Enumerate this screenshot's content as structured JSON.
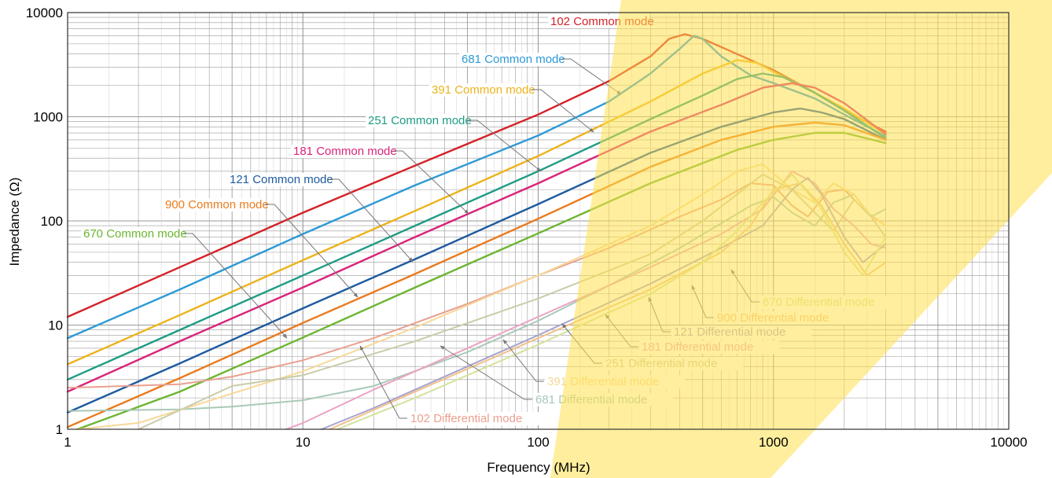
{
  "chart_data": {
    "type": "line",
    "title": "",
    "xlabel": "Frequency (MHz)",
    "ylabel": "Impedance (Ω)",
    "xscale": "log",
    "yscale": "log",
    "xlim": [
      1,
      10000
    ],
    "ylim": [
      1,
      10000
    ],
    "x_ticks": [
      1,
      10,
      100,
      1000,
      10000
    ],
    "x_tick_labels": [
      "1",
      "10",
      "100",
      "1000",
      "10000"
    ],
    "y_ticks": [
      1,
      10,
      100,
      1000,
      10000
    ],
    "y_tick_labels": [
      "1",
      "10",
      "100",
      "1000",
      "10000"
    ],
    "grid": true,
    "legend": "inline annotations with leader arrows",
    "watermark_color": "#FFE04D",
    "series": [
      {
        "name": "102 Common mode",
        "color": "#D42127",
        "x": [
          1,
          3,
          10,
          30,
          100,
          200,
          300,
          360,
          420,
          500,
          700,
          1000,
          1500,
          2000,
          3000
        ],
        "y": [
          12,
          36,
          120,
          340,
          1050,
          2200,
          3800,
          5600,
          6200,
          5600,
          4000,
          2800,
          1700,
          1150,
          720
        ]
      },
      {
        "name": "681 Common mode",
        "color": "#2C9AD6",
        "x": [
          1,
          3,
          10,
          30,
          100,
          200,
          300,
          400,
          460,
          500,
          600,
          800,
          1000,
          1500,
          2000,
          3000
        ],
        "y": [
          7.5,
          22,
          75,
          220,
          660,
          1400,
          2600,
          4500,
          6000,
          5600,
          3800,
          2500,
          2100,
          1500,
          1050,
          650
        ]
      },
      {
        "name": "391 Common mode",
        "color": "#ECB31C",
        "x": [
          1,
          3,
          10,
          30,
          100,
          300,
          500,
          700,
          850,
          1000,
          1500,
          2000,
          3000
        ],
        "y": [
          4.2,
          12.5,
          42,
          125,
          420,
          1400,
          2600,
          3500,
          3300,
          2700,
          1700,
          1200,
          680
        ]
      },
      {
        "name": "251 Common mode",
        "color": "#1E9C84",
        "x": [
          1,
          3,
          10,
          30,
          100,
          300,
          500,
          700,
          900,
          1100,
          1500,
          2000,
          3000
        ],
        "y": [
          3,
          9,
          30,
          90,
          300,
          950,
          1600,
          2300,
          2600,
          2400,
          1700,
          1150,
          620
        ]
      },
      {
        "name": "181 Common mode",
        "color": "#D9237A",
        "x": [
          1,
          3,
          10,
          30,
          100,
          300,
          600,
          900,
          1200,
          1500,
          2000,
          3000
        ],
        "y": [
          2.3,
          7,
          23,
          70,
          230,
          720,
          1300,
          1900,
          2100,
          1900,
          1350,
          680
        ]
      },
      {
        "name": "121 Common mode",
        "color": "#1D5A9F",
        "x": [
          1,
          3,
          10,
          30,
          100,
          300,
          600,
          1000,
          1300,
          1600,
          2000,
          3000
        ],
        "y": [
          1.45,
          4.3,
          14.5,
          43,
          145,
          450,
          800,
          1100,
          1200,
          1100,
          950,
          600
        ]
      },
      {
        "name": "900 Common mode",
        "color": "#EB7A1C",
        "x": [
          1,
          3,
          10,
          30,
          100,
          300,
          600,
          1000,
          1500,
          2000,
          3000
        ],
        "y": [
          1.05,
          3.1,
          10.5,
          31,
          105,
          330,
          600,
          800,
          880,
          830,
          600
        ]
      },
      {
        "name": "670 Common mode",
        "color": "#6CB531",
        "x": [
          1.1,
          3,
          10,
          30,
          100,
          300,
          700,
          1000,
          1500,
          2000,
          3000
        ],
        "y": [
          1,
          2.3,
          7.6,
          23,
          76,
          230,
          480,
          600,
          700,
          700,
          560
        ]
      },
      {
        "name": "102 Differential mode",
        "color": "#EAA090",
        "x": [
          1,
          3,
          5,
          10,
          20,
          50,
          100,
          200,
          400,
          600,
          800,
          1000,
          1200,
          1400,
          1700,
          2000,
          2500,
          3000
        ],
        "y": [
          2.5,
          2.7,
          3.2,
          4.6,
          7.5,
          16,
          30,
          55,
          110,
          160,
          230,
          220,
          140,
          110,
          190,
          200,
          120,
          90
        ]
      },
      {
        "name": "681 Differential mode",
        "color": "#A9C9B7",
        "x": [
          1,
          3,
          5,
          10,
          20,
          50,
          100,
          200,
          400,
          600,
          800,
          1000,
          1200,
          1500,
          1800,
          2200,
          2600,
          3000
        ],
        "y": [
          1.5,
          1.55,
          1.65,
          1.9,
          2.6,
          5.5,
          11,
          24,
          55,
          95,
          140,
          170,
          120,
          90,
          150,
          180,
          110,
          130
        ]
      },
      {
        "name": "391 Differential mode",
        "color": "#F7D899",
        "x": [
          1.1,
          2,
          5,
          10,
          30,
          100,
          300,
          500,
          700,
          900,
          1200,
          1500,
          1800,
          2200,
          2600,
          3000
        ],
        "y": [
          1,
          1.15,
          2.2,
          3.6,
          9.5,
          30,
          90,
          180,
          300,
          350,
          200,
          150,
          230,
          180,
          110,
          90
        ]
      },
      {
        "name": "251 Differential mode",
        "color": "#C9CCA8",
        "x": [
          2,
          5,
          10,
          30,
          100,
          300,
          500,
          700,
          900,
          1200,
          1500,
          1800,
          2200,
          2600,
          3000
        ],
        "y": [
          1,
          2.6,
          3.3,
          7,
          18,
          48,
          100,
          180,
          280,
          200,
          120,
          80,
          160,
          110,
          70
        ]
      },
      {
        "name": "181 Differential mode",
        "color": "#EBA3C4",
        "x": [
          8.5,
          10,
          20,
          50,
          100,
          300,
          600,
          900,
          1200,
          1500,
          1800,
          2200,
          2600,
          3000
        ],
        "y": [
          1,
          1.15,
          2.4,
          6,
          12,
          36,
          75,
          130,
          300,
          230,
          130,
          90,
          60,
          55
        ]
      },
      {
        "name": "121 Differential mode",
        "color": "#A7A4CE",
        "x": [
          12,
          20,
          50,
          100,
          300,
          600,
          900,
          1200,
          1400,
          1600,
          2000,
          2400,
          3000
        ],
        "y": [
          1,
          1.6,
          4,
          8,
          25,
          55,
          90,
          200,
          260,
          180,
          70,
          40,
          60
        ]
      },
      {
        "name": "900 Differential mode",
        "color": "#F2C087",
        "x": [
          13,
          30,
          100,
          300,
          600,
          800,
          1000,
          1300,
          1600,
          2000,
          2500,
          3000
        ],
        "y": [
          1,
          2.3,
          7.5,
          22,
          50,
          90,
          200,
          230,
          140,
          60,
          30,
          40
        ]
      },
      {
        "name": "670 Differential mode",
        "color": "#D4E29C",
        "x": [
          14,
          30,
          100,
          300,
          500,
          700,
          900,
          1200,
          1600,
          2000,
          2400,
          3000
        ],
        "y": [
          1,
          2,
          6.5,
          20,
          40,
          80,
          150,
          280,
          130,
          50,
          30,
          70
        ]
      }
    ],
    "annotations": [
      {
        "text": "102 Common mode",
        "series": "102 Common mode"
      },
      {
        "text": "681 Common mode",
        "series": "681 Common mode"
      },
      {
        "text": "391 Common mode",
        "series": "391 Common mode"
      },
      {
        "text": "251 Common mode",
        "series": "251 Common mode"
      },
      {
        "text": "181 Common mode",
        "series": "181 Common mode"
      },
      {
        "text": "121 Common mode",
        "series": "121 Common mode"
      },
      {
        "text": "900 Common mode",
        "series": "900 Common mode"
      },
      {
        "text": "670 Common mode",
        "series": "670 Common mode"
      },
      {
        "text": "670 Differential mode",
        "series": "670 Differential mode"
      },
      {
        "text": "900 Differential mode",
        "series": "900 Differential mode"
      },
      {
        "text": "121 Differential mode",
        "series": "121 Differential mode"
      },
      {
        "text": "181 Differential mode",
        "series": "181 Differential mode"
      },
      {
        "text": "251 Differential mode",
        "series": "251 Differential mode"
      },
      {
        "text": "391 Differential mode",
        "series": "391 Differential mode"
      },
      {
        "text": "681 Differential mode",
        "series": "681 Differential mode"
      },
      {
        "text": "102 Differential mode",
        "series": "102 Differential mode"
      }
    ]
  }
}
